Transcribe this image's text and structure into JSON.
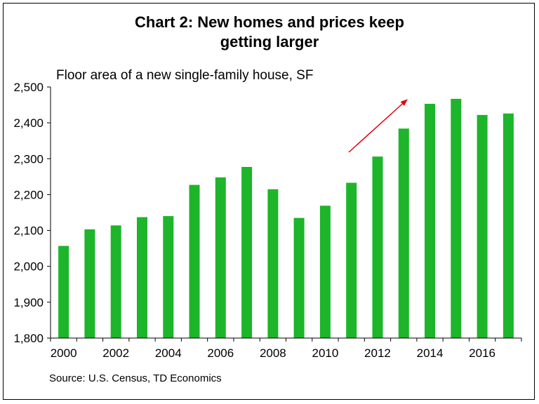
{
  "title_line1": "Chart 2: New homes and prices keep",
  "title_line2": "getting larger",
  "source": "Source: U.S. Census, TD Economics",
  "colors": {
    "bar": "#1db52a",
    "arrow": "#e8000d",
    "axis": "#000000"
  },
  "chart_data": {
    "type": "bar",
    "title": "Chart 2: New homes and prices keep getting larger",
    "subtitle": "Floor area of a new single-family house, SF",
    "xlabel": "",
    "ylabel": "Floor area of a new single-family house, SF",
    "categories": [
      "2000",
      "2001",
      "2002",
      "2003",
      "2004",
      "2005",
      "2006",
      "2007",
      "2008",
      "2009",
      "2010",
      "2011",
      "2012",
      "2013",
      "2014",
      "2015",
      "2016",
      "2017"
    ],
    "values": [
      2057,
      2103,
      2114,
      2137,
      2140,
      2227,
      2248,
      2277,
      2215,
      2135,
      2169,
      2233,
      2306,
      2384,
      2453,
      2467,
      2422,
      2426
    ],
    "x_tick_labels": [
      "2000",
      "2002",
      "2004",
      "2006",
      "2008",
      "2010",
      "2012",
      "2014",
      "2016"
    ],
    "y_tick_labels": [
      "1,800",
      "1,900",
      "2,000",
      "2,100",
      "2,200",
      "2,300",
      "2,400",
      "2,500"
    ],
    "ylim": [
      1800,
      2500
    ],
    "grid": false,
    "annotation": "red arrow pointing up toward 2013-2015 bars"
  }
}
